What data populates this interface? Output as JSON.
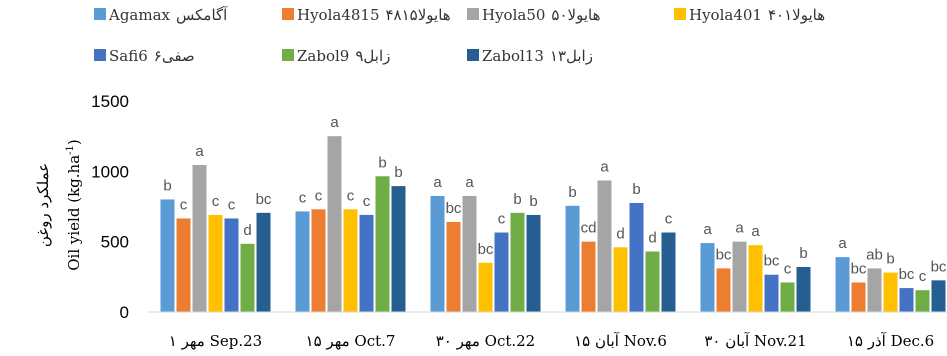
{
  "chart_data": {
    "type": "bar",
    "ylabel": "Oil yield (kg.ha",
    "ylabel_sup": "-1",
    "ylabel_close": ")",
    "ylabel_alt": "عملکرد روغن",
    "ylim": [
      0,
      1500
    ],
    "yticks": [
      0,
      500,
      1000,
      1500
    ],
    "categories": [
      "۱ مهر Sep.23",
      "۱۵ مهر Oct.7",
      "۳۰ مهر Oct.22",
      "۱۵ آبان Nov.6",
      "۳۰ آبان Nov.21",
      "۱۵ آذر Dec.6"
    ],
    "series": [
      {
        "name": "Agamax",
        "name_alt": "آگامکس",
        "color": "#5B9BD5",
        "values": [
          800,
          715,
          825,
          755,
          490,
          390
        ],
        "labels": [
          "b",
          "c",
          "a",
          "b",
          "a",
          "a"
        ]
      },
      {
        "name": "Hyola4815",
        "name_alt": "هایولا۴۸۱۵",
        "color": "#ED7D31",
        "values": [
          665,
          730,
          640,
          500,
          310,
          210
        ],
        "labels": [
          "c",
          "c",
          "bc",
          "cd",
          "bc",
          "bc"
        ]
      },
      {
        "name": "Hyola50",
        "name_alt": "هایولا۵۰",
        "color": "#A5A5A5",
        "values": [
          1045,
          1250,
          825,
          935,
          500,
          310
        ],
        "labels": [
          "a",
          "a",
          "a",
          "a",
          "a",
          "ab"
        ]
      },
      {
        "name": "Hyola401",
        "name_alt": "هایولا۴۰۱",
        "color": "#FFC000",
        "values": [
          690,
          730,
          350,
          460,
          475,
          280
        ],
        "labels": [
          "c",
          "c",
          "bc",
          "d",
          "a",
          "b"
        ]
      },
      {
        "name": "Safi6",
        "name_alt": "صفی۶",
        "color": "#4472C4",
        "values": [
          665,
          690,
          565,
          775,
          265,
          170
        ],
        "labels": [
          "c",
          "c",
          "c",
          "b",
          "bc",
          "bc"
        ]
      },
      {
        "name": "Zabol9",
        "name_alt": "زابل۹",
        "color": "#70AD47",
        "values": [
          485,
          965,
          705,
          430,
          210,
          155
        ],
        "labels": [
          "d",
          "b",
          "b",
          "d",
          "c",
          "c"
        ]
      },
      {
        "name": "Zabol13",
        "name_alt": "زابل۱۳",
        "color": "#255E91",
        "values": [
          705,
          895,
          690,
          565,
          320,
          225
        ],
        "labels": [
          "bc",
          "b",
          "b",
          "c",
          "b",
          "bc"
        ]
      }
    ]
  }
}
